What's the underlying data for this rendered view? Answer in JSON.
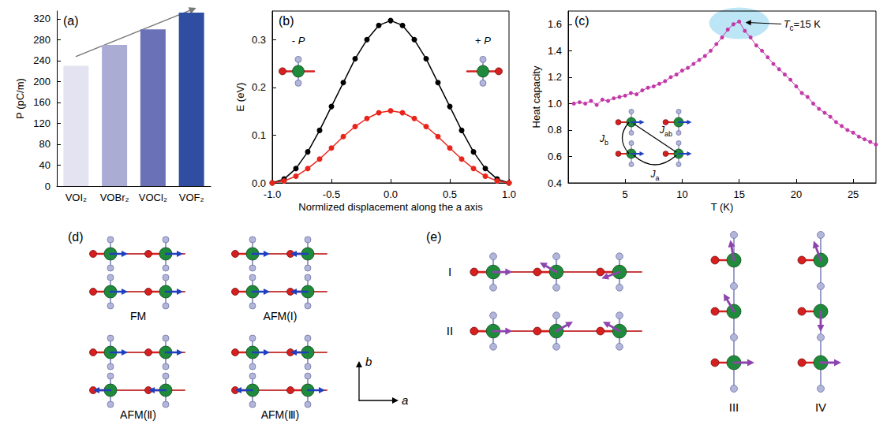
{
  "chart_data": [
    {
      "title": "(a)",
      "type": "bar",
      "categories": [
        "VOI₂",
        "VOBr₂",
        "VOCl₂",
        "VOF₂"
      ],
      "values": [
        230,
        270,
        300,
        332
      ],
      "colors": [
        "#e3e3f1",
        "#aaacd4",
        "#6b71b6",
        "#2f4ea1"
      ],
      "ylabel": "P (pC/m)",
      "ylim": [
        0,
        335
      ],
      "yticks": [
        0,
        40,
        80,
        120,
        160,
        200,
        240,
        280,
        320
      ],
      "grid": false
    },
    {
      "title": "(b)",
      "type": "line",
      "x": [
        -1,
        -0.9,
        -0.8,
        -0.7,
        -0.6,
        -0.5,
        -0.4,
        -0.3,
        -0.2,
        -0.1,
        0,
        0.1,
        0.2,
        0.3,
        0.4,
        0.5,
        0.6,
        0.7,
        0.8,
        0.9,
        1
      ],
      "series": [
        {
          "color": "#000000",
          "marker": "circle",
          "values": [
            0,
            0.008,
            0.03,
            0.065,
            0.11,
            0.16,
            0.21,
            0.26,
            0.3,
            0.33,
            0.34,
            0.33,
            0.3,
            0.26,
            0.21,
            0.16,
            0.11,
            0.065,
            0.03,
            0.008,
            0
          ]
        },
        {
          "color": "#e8241b",
          "marker": "circle",
          "values": [
            0,
            0.004,
            0.014,
            0.03,
            0.05,
            0.073,
            0.097,
            0.118,
            0.135,
            0.147,
            0.151,
            0.147,
            0.135,
            0.118,
            0.097,
            0.073,
            0.05,
            0.03,
            0.014,
            0.004,
            0
          ]
        }
      ],
      "xlabel": "Normlized displacement along the a axis",
      "ylabel": "E (eV)",
      "xlim": [
        -1,
        1
      ],
      "xticks": [
        {
          "value": -1,
          "label": "-1.0"
        },
        -0.5,
        {
          "value": 0,
          "label": "0.0"
        },
        0.5,
        {
          "value": 1,
          "label": "1.0"
        }
      ],
      "ylim": [
        0,
        0.36
      ],
      "yticks": [
        {
          "value": 0,
          "label": "0.0"
        },
        0.1,
        0.2,
        0.3
      ],
      "annotations": [
        {
          "text": "- P",
          "x": -0.78,
          "y": 0.29
        },
        {
          "text": "+ P",
          "x": 0.78,
          "y": 0.29
        }
      ],
      "grid": false
    },
    {
      "title": "(c)",
      "type": "line",
      "x": [
        0.5,
        1,
        1.5,
        2,
        2.5,
        3,
        3.5,
        4,
        4.5,
        5,
        5.5,
        6,
        6.5,
        7,
        7.5,
        8,
        8.5,
        9,
        9.5,
        10,
        10.5,
        11,
        11.5,
        12,
        12.5,
        13,
        13.5,
        14,
        14.5,
        15,
        15.5,
        16,
        16.5,
        17,
        17.5,
        18,
        18.5,
        19,
        19.5,
        20,
        20.5,
        21,
        21.5,
        22,
        22.5,
        23,
        23.5,
        24,
        24.5,
        25,
        25.5,
        26,
        26.5,
        27
      ],
      "values": [
        1,
        1.01,
        1,
        1.02,
        0.99,
        1.03,
        1.02,
        1.04,
        1.05,
        1.06,
        1.08,
        1.07,
        1.1,
        1.12,
        1.13,
        1.15,
        1.17,
        1.2,
        1.22,
        1.25,
        1.27,
        1.3,
        1.33,
        1.36,
        1.4,
        1.45,
        1.5,
        1.56,
        1.6,
        1.62,
        1.55,
        1.5,
        1.44,
        1.4,
        1.35,
        1.3,
        1.26,
        1.22,
        1.18,
        1.13,
        1.08,
        1.05,
        1,
        0.96,
        0.93,
        0.9,
        0.86,
        0.83,
        0.8,
        0.78,
        0.75,
        0.73,
        0.71,
        0.69
      ],
      "color": "#c23aa8",
      "marker": "circle",
      "xlabel": "T (K)",
      "ylabel": "Heat capacity",
      "xlim": [
        0,
        27
      ],
      "xticks": [
        5,
        10,
        15,
        20,
        25
      ],
      "ylim": [
        0.4,
        1.7
      ],
      "yticks": [
        0.4,
        0.6,
        0.8,
        {
          "value": 1,
          "label": "1.0"
        },
        1.2,
        1.4,
        1.6
      ],
      "annotations": [
        {
          "text": "Tc=15 K",
          "x": 15,
          "y": 1.62
        }
      ],
      "inset_labels": [
        "Jb",
        "Jab",
        "Ja"
      ],
      "grid": false
    }
  ],
  "diagrams": [
    {
      "title": "(d)",
      "configurations": [
        {
          "label": "FM",
          "spins": [
            [
              1,
              1
            ],
            [
              1,
              1
            ]
          ]
        },
        {
          "label": "AFM(I)",
          "spins": [
            [
              1,
              -1
            ],
            [
              1,
              -1
            ]
          ]
        },
        {
          "label": "AFM(Ⅱ)",
          "spins": [
            [
              1,
              1
            ],
            [
              -1,
              -1
            ]
          ]
        },
        {
          "label": "AFM(Ⅲ)",
          "spins": [
            [
              1,
              -1
            ],
            [
              -1,
              1
            ]
          ]
        }
      ],
      "axes": [
        "a",
        "b"
      ]
    },
    {
      "title": "(e)",
      "chains": [
        {
          "label": "I",
          "direction": "a",
          "spin_angles": [
            0,
            150,
            200
          ]
        },
        {
          "label": "II",
          "direction": "a",
          "spin_angles": [
            0,
            30,
            150
          ]
        },
        {
          "label": "III",
          "direction": "b",
          "spin_angles": [
            100,
            120,
            0
          ]
        },
        {
          "label": "IV",
          "direction": "b",
          "spin_angles": [
            110,
            270,
            0
          ]
        }
      ]
    }
  ]
}
